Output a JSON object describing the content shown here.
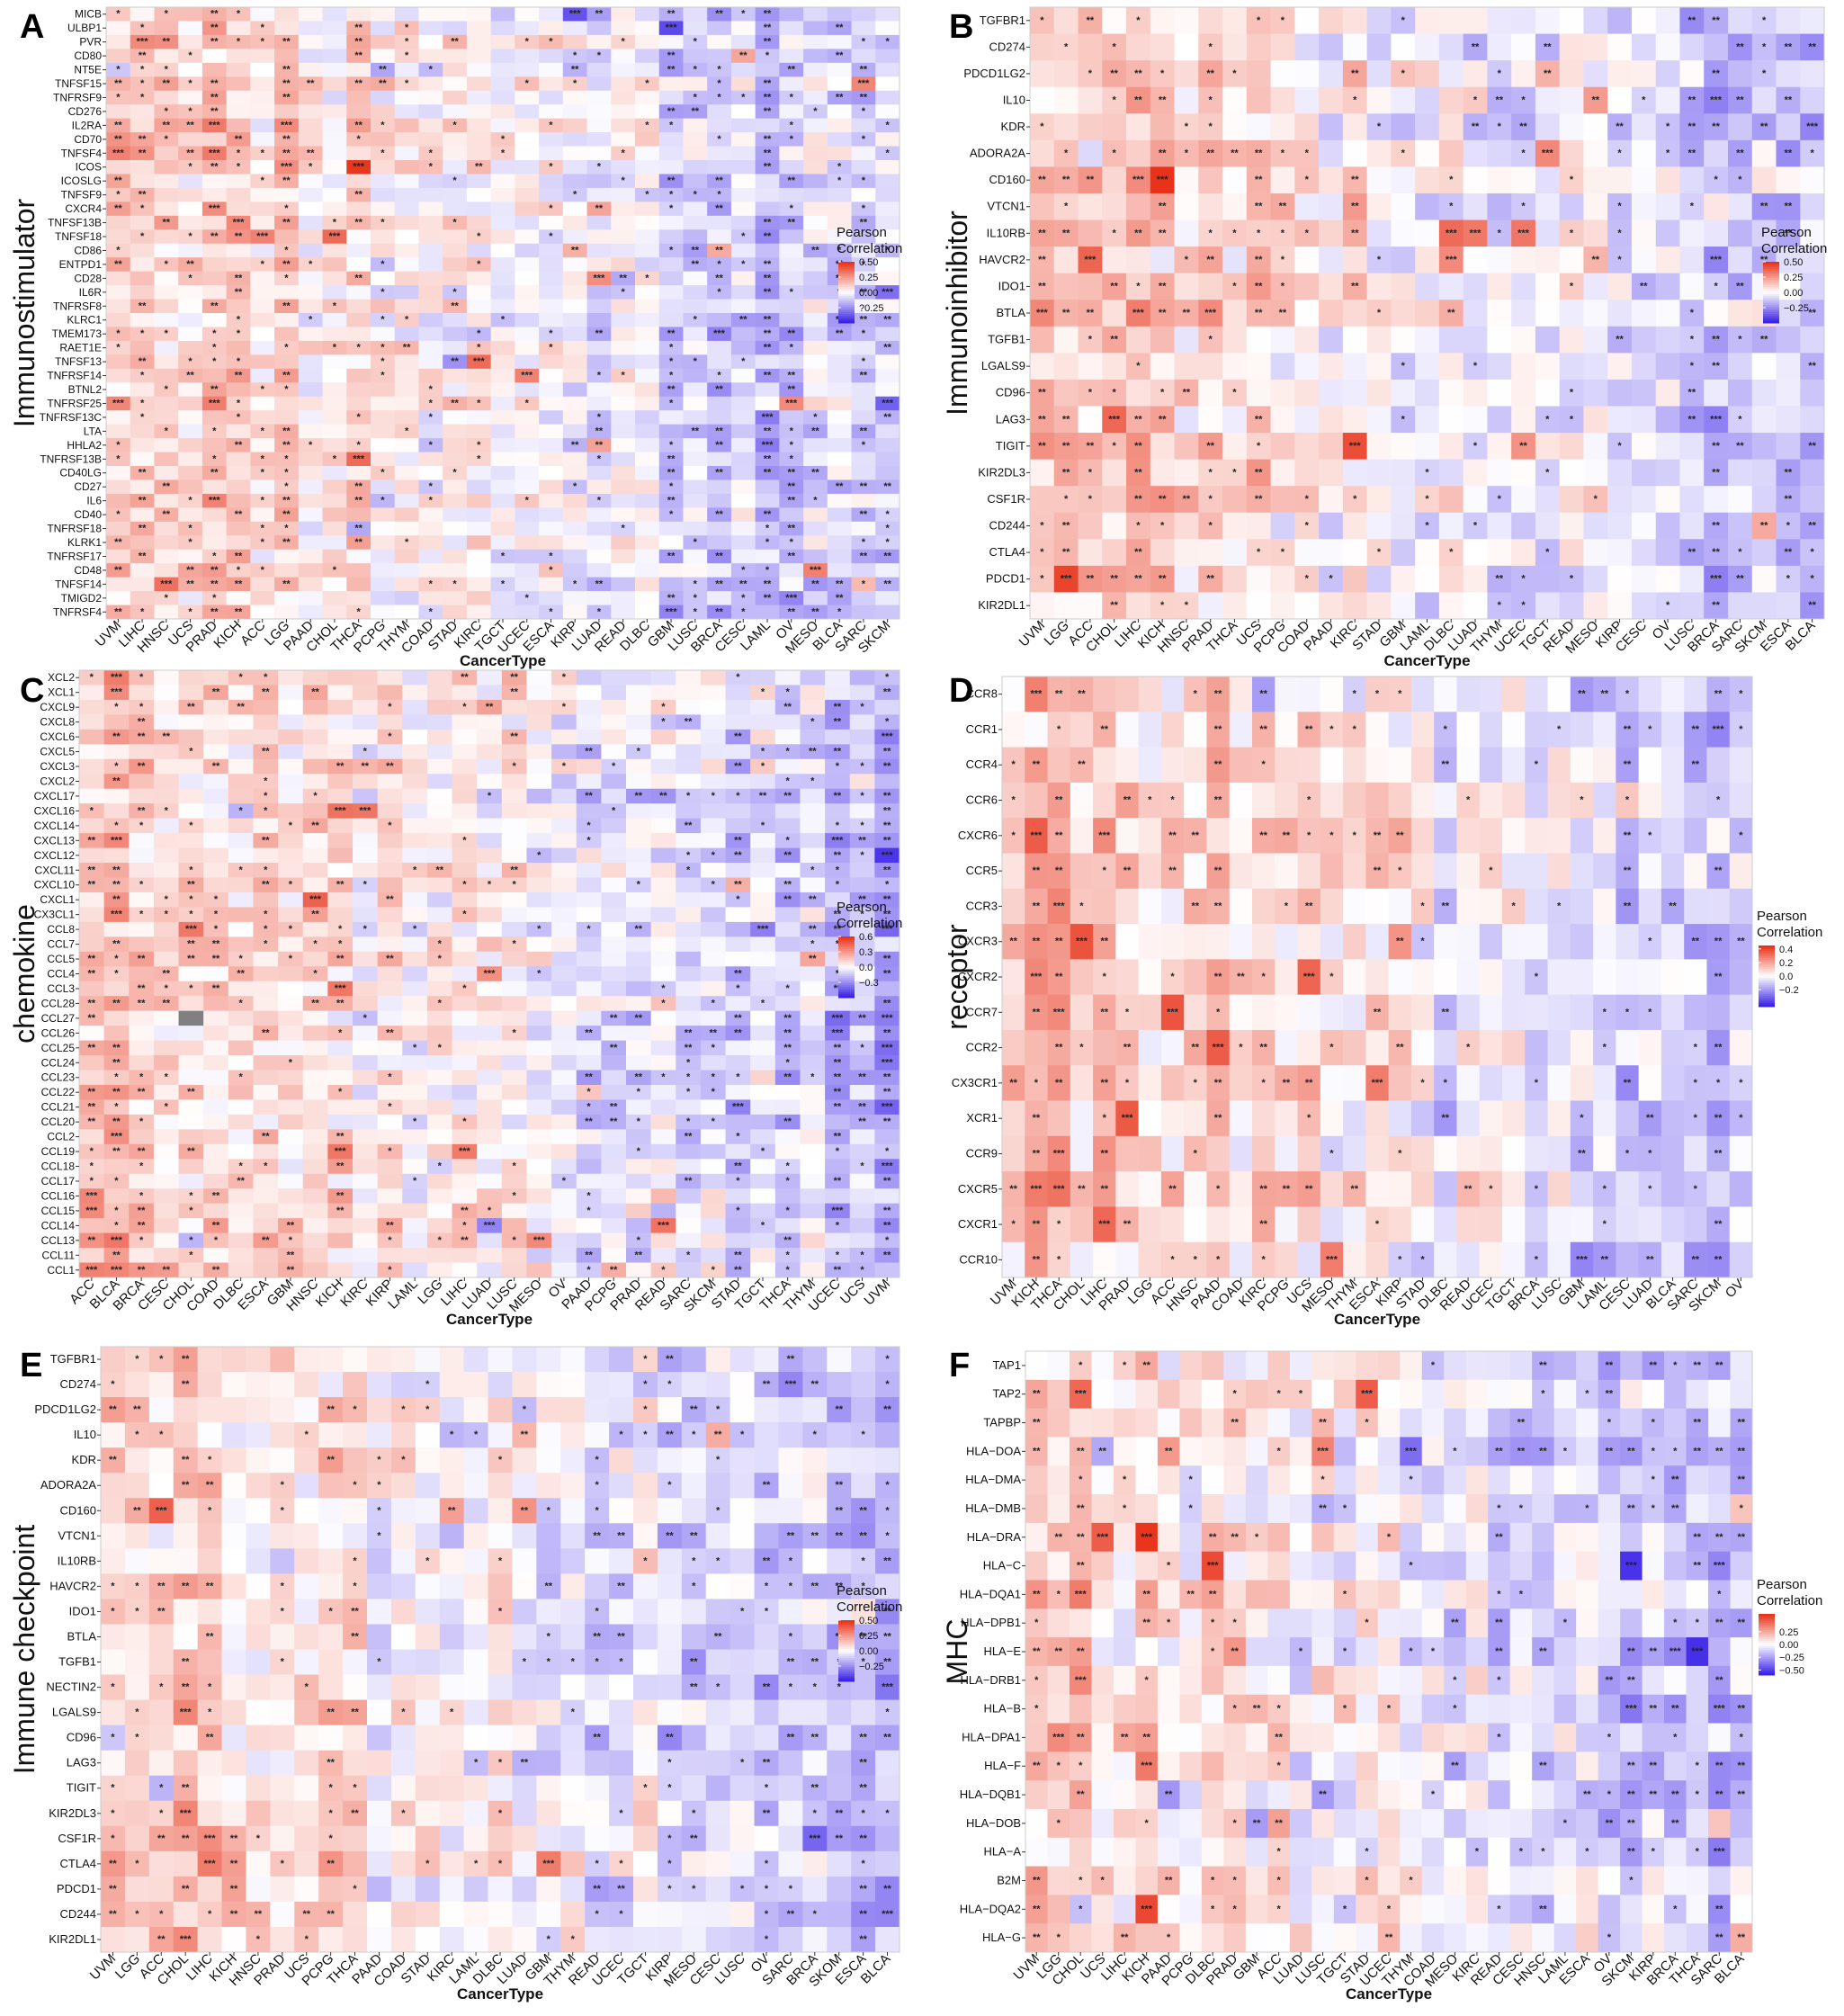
{
  "figure": {
    "panel_letters": [
      "A",
      "B",
      "C",
      "D",
      "E",
      "F"
    ],
    "legend_title_line1": "Pearson",
    "legend_title_line2": "Correlation",
    "significance_marks": [
      "*",
      "**",
      "***"
    ]
  },
  "chart_data": [
    {
      "type": "heatmap",
      "panel": "A",
      "ylabel": "Immunostimulator",
      "xlabel": "CancerType",
      "rows": [
        "MICB",
        "ULBP1",
        "PVR",
        "CD80",
        "NT5E",
        "TNFSF15",
        "TNFRSF9",
        "CD276",
        "IL2RA",
        "CD70",
        "TNFSF4",
        "ICOS",
        "ICOSLG",
        "TNFSF9",
        "CXCR4",
        "TNFSF13B",
        "TNFSF18",
        "CD86",
        "ENTPD1",
        "CD28",
        "IL6R",
        "TNFRSF8",
        "KLRC1",
        "TMEM173",
        "RAET1E",
        "TNFSF13",
        "TNFRSF14",
        "BTNL2",
        "TNFRSF25",
        "TNFRSF13C",
        "LTA",
        "HHLA2",
        "TNFRSF13B",
        "CD40LG",
        "CD27",
        "IL6",
        "CD40",
        "TNFRSF18",
        "KLRK1",
        "TNFRSF17",
        "CD48",
        "TNFSF14",
        "TMIGD2",
        "TNFRSF4"
      ],
      "columns": [
        "UVM",
        "LIHC",
        "HNSC",
        "UCS",
        "PRAD",
        "KICH",
        "ACC",
        "LGG",
        "PAAD",
        "CHOL",
        "THCA",
        "PCPG",
        "THYM",
        "COAD",
        "STAD",
        "KIRC",
        "TGCT",
        "UCEC",
        "ESCA",
        "KIRP",
        "LUAD",
        "READ",
        "DLBC",
        "GBM",
        "LUSC",
        "BRCA",
        "CESC",
        "LAML",
        "OV",
        "MESO",
        "BLCA",
        "SARC",
        "SKCM"
      ],
      "legend_ticks": [
        "0.50",
        "0.25",
        "0.00",
        "?0.25"
      ],
      "legend_values": [
        0.5,
        0.25,
        0,
        -0.25
      ],
      "color_scale": {
        "low": "#3b22e8",
        "mid": "#ffffff",
        "high": "#e8331a",
        "range": [
          -0.5,
          0.5
        ]
      }
    },
    {
      "type": "heatmap",
      "panel": "B",
      "ylabel": "Immunoinhibitor",
      "xlabel": "CancerType",
      "rows": [
        "TGFBR1",
        "CD274",
        "PDCD1LG2",
        "IL10",
        "KDR",
        "ADORA2A",
        "CD160",
        "VTCN1",
        "IL10RB",
        "HAVCR2",
        "IDO1",
        "BTLA",
        "TGFB1",
        "LGALS9",
        "CD96",
        "LAG3",
        "TIGIT",
        "KIR2DL3",
        "CSF1R",
        "CD244",
        "CTLA4",
        "PDCD1",
        "KIR2DL1"
      ],
      "columns": [
        "UVM",
        "LGG",
        "ACC",
        "CHOL",
        "LIHC",
        "KICH",
        "HNSC",
        "PRAD",
        "THCA",
        "UCS",
        "PCPG",
        "COAD",
        "PAAD",
        "KIRC",
        "STAD",
        "GBM",
        "LAML",
        "DLBC",
        "LUAD",
        "THYM",
        "UCEC",
        "TGCT",
        "READ",
        "MESO",
        "KIRP",
        "CESC",
        "OV",
        "LUSC",
        "BRCA",
        "SARC",
        "SKCM",
        "ESCA",
        "BLCA"
      ],
      "legend_ticks": [
        "0.50",
        "0.25",
        "0.00",
        "−0.25"
      ],
      "legend_values": [
        0.5,
        0.25,
        0,
        -0.25
      ],
      "color_scale": {
        "low": "#3b22e8",
        "mid": "#ffffff",
        "high": "#e8331a",
        "range": [
          -0.5,
          0.5
        ]
      }
    },
    {
      "type": "heatmap",
      "panel": "C",
      "ylabel": "chemokine",
      "xlabel": "CancerType",
      "rows": [
        "XCL2",
        "XCL1",
        "CXCL9",
        "CXCL8",
        "CXCL6",
        "CXCL5",
        "CXCL3",
        "CXCL2",
        "CXCL17",
        "CXCL16",
        "CXCL14",
        "CXCL13",
        "CXCL12",
        "CXCL11",
        "CXCL10",
        "CXCL1",
        "CX3CL1",
        "CCL8",
        "CCL7",
        "CCL5",
        "CCL4",
        "CCL3",
        "CCL28",
        "CCL27",
        "CCL26",
        "CCL25",
        "CCL24",
        "CCL23",
        "CCL22",
        "CCL21",
        "CCL20",
        "CCL2",
        "CCL19",
        "CCL18",
        "CCL17",
        "CCL16",
        "CCL15",
        "CCL14",
        "CCL13",
        "CCL11",
        "CCL1"
      ],
      "columns": [
        "ACC",
        "BLCA",
        "BRCA",
        "CESC",
        "CHOL",
        "COAD",
        "DLBC",
        "ESCA",
        "GBM",
        "HNSC",
        "KICH",
        "KIRC",
        "KIRP",
        "LAML",
        "LGG",
        "LIHC",
        "LUAD",
        "LUSC",
        "MESO",
        "OV",
        "PAAD",
        "PCPG",
        "PRAD",
        "READ",
        "SARC",
        "SKCM",
        "STAD",
        "TGCT",
        "THCA",
        "THYM",
        "UCEC",
        "UCS",
        "UVM"
      ],
      "legend_ticks": [
        "0.6",
        "0.3",
        "0.0",
        "−0.3"
      ],
      "legend_values": [
        0.6,
        0.3,
        0,
        -0.3
      ],
      "missing_cells": [
        {
          "row": "CCL27",
          "column": "CHOL"
        }
      ],
      "color_scale": {
        "low": "#3b22e8",
        "mid": "#ffffff",
        "high": "#e8331a",
        "range": [
          -0.6,
          0.6
        ]
      }
    },
    {
      "type": "heatmap",
      "panel": "D",
      "ylabel": "receptor",
      "xlabel": "CancerType",
      "rows": [
        "CCR8",
        "CCR1",
        "CCR4",
        "CCR6",
        "CXCR6",
        "CCR5",
        "CCR3",
        "CXCR3",
        "CXCR2",
        "CCR7",
        "CCR2",
        "CX3CR1",
        "XCR1",
        "CCR9",
        "CXCR5",
        "CXCR1",
        "CCR10"
      ],
      "columns": [
        "UVM",
        "KICH",
        "THCA",
        "CHOL",
        "LIHC",
        "PRAD",
        "LGG",
        "ACC",
        "HNSC",
        "PAAD",
        "COAD",
        "KIRC",
        "PCPG",
        "UCS",
        "MESO",
        "THYM",
        "ESCA",
        "KIRP",
        "STAD",
        "DLBC",
        "READ",
        "UCEC",
        "TGCT",
        "BRCA",
        "LUSC",
        "GBM",
        "LAML",
        "CESC",
        "LUAD",
        "BLCA",
        "SARC",
        "SKCM",
        "OV"
      ],
      "legend_ticks": [
        "0.4",
        "0.2",
        "0.0",
        "−0.2"
      ],
      "legend_values": [
        0.4,
        0.2,
        0,
        -0.2
      ],
      "color_scale": {
        "low": "#3b22e8",
        "mid": "#ffffff",
        "high": "#e8331a",
        "range": [
          -0.45,
          0.45
        ]
      }
    },
    {
      "type": "heatmap",
      "panel": "E",
      "ylabel": "Immune checkpoint",
      "xlabel": "CancerType",
      "rows": [
        "TGFBR1",
        "CD274",
        "PDCD1LG2",
        "IL10",
        "KDR",
        "ADORA2A",
        "CD160",
        "VTCN1",
        "IL10RB",
        "HAVCR2",
        "IDO1",
        "BTLA",
        "TGFB1",
        "NECTIN2",
        "LGALS9",
        "CD96",
        "LAG3",
        "TIGIT",
        "KIR2DL3",
        "CSF1R",
        "CTLA4",
        "PDCD1",
        "CD244",
        "KIR2DL1"
      ],
      "columns": [
        "UVM",
        "LGG",
        "ACC",
        "CHOL",
        "LIHC",
        "KICH",
        "HNSC",
        "PRAD",
        "UCS",
        "PCPG",
        "THCA",
        "PAAD",
        "COAD",
        "STAD",
        "KIRC",
        "LAML",
        "DLBC",
        "LUAD",
        "GBM",
        "THYM",
        "READ",
        "UCEC",
        "TGCT",
        "KIRP",
        "MESO",
        "CESC",
        "LUSC",
        "OV",
        "SARC",
        "BRCA",
        "SKOM",
        "ESCA",
        "BLCA"
      ],
      "legend_ticks": [
        "0.50",
        "0.25",
        "0.00",
        "−0.25"
      ],
      "legend_values": [
        0.5,
        0.25,
        0,
        -0.25
      ],
      "color_scale": {
        "low": "#3b22e8",
        "mid": "#ffffff",
        "high": "#e8331a",
        "range": [
          -0.5,
          0.5
        ]
      }
    },
    {
      "type": "heatmap",
      "panel": "F",
      "ylabel": "MHC",
      "xlabel": "CancerType",
      "rows": [
        "TAP1",
        "TAP2",
        "TAPBP",
        "HLA−DOA",
        "HLA−DMA",
        "HLA−DMB",
        "HLA−DRA",
        "HLA−C",
        "HLA−DQA1",
        "HLA−DPB1",
        "HLA−E",
        "HLA−DRB1",
        "HLA−B",
        "HLA−DPA1",
        "HLA−F",
        "HLA−DQB1",
        "HLA−DOB",
        "HLA−A",
        "B2M",
        "HLA−DQA2",
        "HLA−G"
      ],
      "columns": [
        "UVM",
        "LGG",
        "CHOL",
        "UCS",
        "LIHC",
        "KICH",
        "PAAD",
        "PCPG",
        "DLBC",
        "PRAD",
        "GBM",
        "ACC",
        "LUAD",
        "LUSC",
        "TGCT",
        "STAD",
        "UCEC",
        "THYM",
        "COAD",
        "MESO",
        "KIRC",
        "READ",
        "CESC",
        "HNSC",
        "LAML",
        "ESCA",
        "OV",
        "SKCM",
        "KIRP",
        "BRCA",
        "THCA",
        "SARC",
        "BLCA"
      ],
      "legend_ticks": [
        "0.25",
        "0.00",
        "−0.25",
        "−0.50"
      ],
      "legend_values": [
        0.25,
        0,
        -0.25,
        -0.5
      ],
      "color_scale": {
        "low": "#3b22e8",
        "mid": "#ffffff",
        "high": "#e8331a",
        "range": [
          -0.6,
          0.6
        ]
      }
    }
  ]
}
